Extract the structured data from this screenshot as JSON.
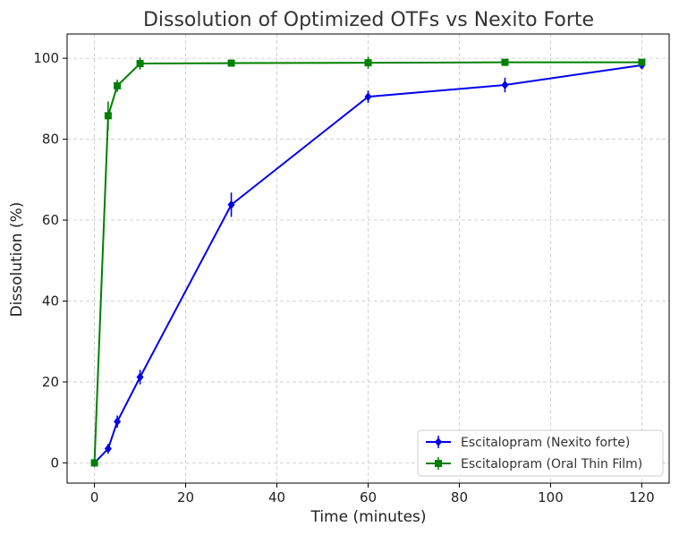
{
  "chart_data": {
    "type": "line",
    "title": "Dissolution of Optimized OTFs vs Nexito Forte",
    "xlabel": "Time (minutes)",
    "ylabel": "Dissolution (%)",
    "xlim": [
      -6,
      126
    ],
    "ylim": [
      -5,
      106
    ],
    "xticks": [
      0,
      20,
      40,
      60,
      80,
      100,
      120
    ],
    "yticks": [
      0,
      20,
      40,
      60,
      80,
      100
    ],
    "grid": true,
    "legend_position": "bottom-right",
    "series": [
      {
        "name": "Escitalopram (Nexito forte)",
        "color": "#0000ee",
        "marker": "diamond",
        "x": [
          0,
          3,
          5,
          10,
          30,
          60,
          90,
          120
        ],
        "y": [
          0,
          3.5,
          10.2,
          21.2,
          63.8,
          90.5,
          93.4,
          98.3
        ],
        "err": [
          0,
          1.2,
          1.5,
          1.8,
          3.0,
          1.5,
          1.8,
          1.0
        ]
      },
      {
        "name": "Escitalopram (Oral Thin Film)",
        "color": "#008000",
        "marker": "square",
        "x": [
          0,
          3,
          5,
          10,
          30,
          60,
          90,
          120
        ],
        "y": [
          0,
          85.8,
          93.2,
          98.7,
          98.8,
          98.9,
          99.0,
          99.0
        ],
        "err": [
          0,
          3.5,
          1.5,
          1.5,
          0.8,
          1.5,
          0.8,
          0.6
        ]
      }
    ]
  }
}
